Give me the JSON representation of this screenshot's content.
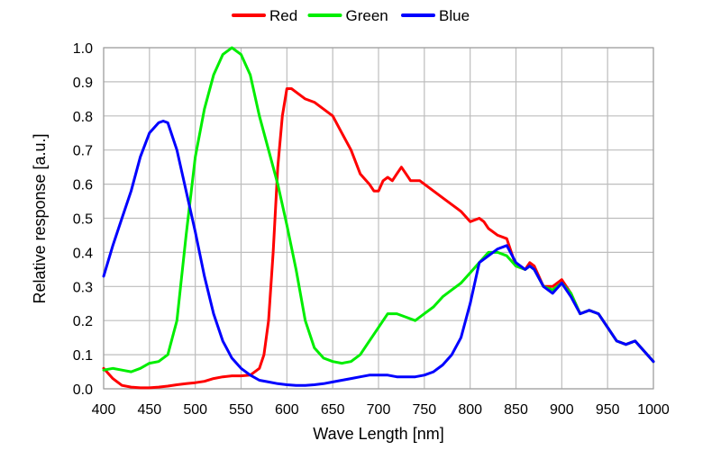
{
  "chart_data": {
    "type": "line",
    "xlabel": "Wave Length [nm]",
    "ylabel": "Relative response [a.u.]",
    "xlim": [
      400,
      1000
    ],
    "ylim": [
      0,
      1.0
    ],
    "xticks": [
      400,
      450,
      500,
      550,
      600,
      650,
      700,
      750,
      800,
      850,
      900,
      950,
      1000
    ],
    "yticks": [
      "0.0",
      "0.1",
      "0.2",
      "0.3",
      "0.4",
      "0.5",
      "0.6",
      "0.7",
      "0.8",
      "0.9",
      "1.0"
    ],
    "grid": true,
    "legend": "top",
    "series": [
      {
        "name": "Red",
        "color": "#ff0000",
        "points": [
          [
            400,
            0.06
          ],
          [
            410,
            0.03
          ],
          [
            420,
            0.01
          ],
          [
            430,
            0.005
          ],
          [
            440,
            0.003
          ],
          [
            450,
            0.003
          ],
          [
            460,
            0.005
          ],
          [
            470,
            0.008
          ],
          [
            480,
            0.012
          ],
          [
            490,
            0.015
          ],
          [
            500,
            0.018
          ],
          [
            510,
            0.022
          ],
          [
            520,
            0.03
          ],
          [
            530,
            0.035
          ],
          [
            540,
            0.038
          ],
          [
            550,
            0.038
          ],
          [
            560,
            0.04
          ],
          [
            570,
            0.06
          ],
          [
            575,
            0.1
          ],
          [
            580,
            0.2
          ],
          [
            585,
            0.4
          ],
          [
            590,
            0.65
          ],
          [
            595,
            0.8
          ],
          [
            600,
            0.88
          ],
          [
            605,
            0.88
          ],
          [
            610,
            0.87
          ],
          [
            620,
            0.85
          ],
          [
            630,
            0.84
          ],
          [
            640,
            0.82
          ],
          [
            650,
            0.8
          ],
          [
            660,
            0.75
          ],
          [
            670,
            0.7
          ],
          [
            680,
            0.63
          ],
          [
            690,
            0.6
          ],
          [
            695,
            0.58
          ],
          [
            700,
            0.58
          ],
          [
            705,
            0.61
          ],
          [
            710,
            0.62
          ],
          [
            715,
            0.61
          ],
          [
            720,
            0.63
          ],
          [
            725,
            0.65
          ],
          [
            730,
            0.63
          ],
          [
            735,
            0.61
          ],
          [
            740,
            0.61
          ],
          [
            745,
            0.61
          ],
          [
            750,
            0.6
          ],
          [
            760,
            0.58
          ],
          [
            770,
            0.56
          ],
          [
            780,
            0.54
          ],
          [
            790,
            0.52
          ],
          [
            800,
            0.49
          ],
          [
            810,
            0.5
          ],
          [
            815,
            0.49
          ],
          [
            820,
            0.47
          ],
          [
            830,
            0.45
          ],
          [
            840,
            0.44
          ],
          [
            850,
            0.36
          ],
          [
            860,
            0.35
          ],
          [
            865,
            0.37
          ],
          [
            870,
            0.36
          ],
          [
            880,
            0.3
          ],
          [
            890,
            0.3
          ],
          [
            900,
            0.32
          ],
          [
            910,
            0.28
          ],
          [
            920,
            0.22
          ],
          [
            930,
            0.23
          ],
          [
            940,
            0.22
          ],
          [
            950,
            0.18
          ],
          [
            960,
            0.14
          ],
          [
            970,
            0.13
          ],
          [
            980,
            0.14
          ],
          [
            990,
            0.11
          ],
          [
            1000,
            0.08
          ]
        ]
      },
      {
        "name": "Green",
        "color": "#00ee00",
        "points": [
          [
            400,
            0.055
          ],
          [
            410,
            0.06
          ],
          [
            420,
            0.055
          ],
          [
            430,
            0.05
          ],
          [
            440,
            0.06
          ],
          [
            450,
            0.075
          ],
          [
            460,
            0.08
          ],
          [
            470,
            0.1
          ],
          [
            480,
            0.2
          ],
          [
            490,
            0.45
          ],
          [
            500,
            0.68
          ],
          [
            510,
            0.82
          ],
          [
            520,
            0.92
          ],
          [
            530,
            0.98
          ],
          [
            540,
            1.0
          ],
          [
            550,
            0.98
          ],
          [
            560,
            0.92
          ],
          [
            570,
            0.8
          ],
          [
            580,
            0.7
          ],
          [
            590,
            0.6
          ],
          [
            600,
            0.48
          ],
          [
            610,
            0.35
          ],
          [
            620,
            0.2
          ],
          [
            630,
            0.12
          ],
          [
            640,
            0.09
          ],
          [
            650,
            0.08
          ],
          [
            660,
            0.075
          ],
          [
            670,
            0.08
          ],
          [
            680,
            0.1
          ],
          [
            690,
            0.14
          ],
          [
            700,
            0.18
          ],
          [
            705,
            0.2
          ],
          [
            710,
            0.22
          ],
          [
            720,
            0.22
          ],
          [
            730,
            0.21
          ],
          [
            740,
            0.2
          ],
          [
            750,
            0.22
          ],
          [
            760,
            0.24
          ],
          [
            770,
            0.27
          ],
          [
            780,
            0.29
          ],
          [
            790,
            0.31
          ],
          [
            800,
            0.34
          ],
          [
            810,
            0.37
          ],
          [
            820,
            0.4
          ],
          [
            830,
            0.4
          ],
          [
            840,
            0.39
          ],
          [
            850,
            0.36
          ],
          [
            860,
            0.35
          ],
          [
            865,
            0.36
          ],
          [
            870,
            0.35
          ],
          [
            880,
            0.3
          ],
          [
            890,
            0.29
          ],
          [
            900,
            0.31
          ],
          [
            910,
            0.28
          ],
          [
            920,
            0.22
          ],
          [
            930,
            0.23
          ],
          [
            940,
            0.22
          ],
          [
            950,
            0.18
          ],
          [
            960,
            0.14
          ],
          [
            970,
            0.13
          ],
          [
            980,
            0.14
          ],
          [
            990,
            0.11
          ],
          [
            1000,
            0.08
          ]
        ]
      },
      {
        "name": "Blue",
        "color": "#0000ff",
        "points": [
          [
            400,
            0.33
          ],
          [
            410,
            0.42
          ],
          [
            420,
            0.5
          ],
          [
            430,
            0.58
          ],
          [
            440,
            0.68
          ],
          [
            450,
            0.75
          ],
          [
            460,
            0.78
          ],
          [
            465,
            0.785
          ],
          [
            470,
            0.78
          ],
          [
            480,
            0.7
          ],
          [
            490,
            0.58
          ],
          [
            500,
            0.46
          ],
          [
            510,
            0.33
          ],
          [
            520,
            0.22
          ],
          [
            530,
            0.14
          ],
          [
            540,
            0.09
          ],
          [
            550,
            0.06
          ],
          [
            560,
            0.04
          ],
          [
            570,
            0.025
          ],
          [
            580,
            0.02
          ],
          [
            590,
            0.015
          ],
          [
            600,
            0.012
          ],
          [
            610,
            0.01
          ],
          [
            620,
            0.01
          ],
          [
            630,
            0.012
          ],
          [
            640,
            0.015
          ],
          [
            650,
            0.02
          ],
          [
            660,
            0.025
          ],
          [
            670,
            0.03
          ],
          [
            680,
            0.035
          ],
          [
            690,
            0.04
          ],
          [
            700,
            0.04
          ],
          [
            710,
            0.04
          ],
          [
            720,
            0.035
          ],
          [
            730,
            0.035
          ],
          [
            740,
            0.035
          ],
          [
            750,
            0.04
          ],
          [
            760,
            0.05
          ],
          [
            770,
            0.07
          ],
          [
            780,
            0.1
          ],
          [
            790,
            0.15
          ],
          [
            800,
            0.25
          ],
          [
            810,
            0.37
          ],
          [
            820,
            0.39
          ],
          [
            830,
            0.41
          ],
          [
            840,
            0.42
          ],
          [
            850,
            0.37
          ],
          [
            860,
            0.35
          ],
          [
            865,
            0.36
          ],
          [
            870,
            0.35
          ],
          [
            880,
            0.3
          ],
          [
            890,
            0.28
          ],
          [
            900,
            0.31
          ],
          [
            910,
            0.27
          ],
          [
            920,
            0.22
          ],
          [
            930,
            0.23
          ],
          [
            940,
            0.22
          ],
          [
            950,
            0.18
          ],
          [
            960,
            0.14
          ],
          [
            970,
            0.13
          ],
          [
            980,
            0.14
          ],
          [
            990,
            0.11
          ],
          [
            1000,
            0.08
          ]
        ]
      }
    ]
  }
}
